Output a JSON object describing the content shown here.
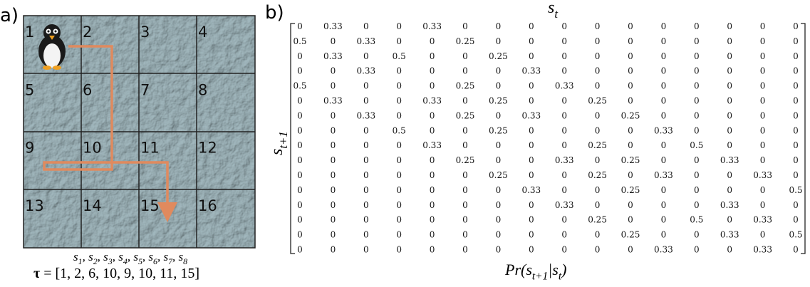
{
  "panels": {
    "a": "a)",
    "b": "b)"
  },
  "grid": {
    "cells": [
      "1",
      "2",
      "3",
      "4",
      "5",
      "6",
      "7",
      "8",
      "9",
      "10",
      "11",
      "12",
      "13",
      "14",
      "15",
      "16"
    ]
  },
  "trajectory": {
    "states": [
      {
        "text": "s"
      },
      {
        "text": "1",
        "sub": true
      },
      {
        "text": ", s"
      },
      {
        "text": "2",
        "sub": true
      },
      {
        "text": ", s"
      },
      {
        "text": "3",
        "sub": true
      },
      {
        "text": ", s"
      },
      {
        "text": "4",
        "sub": true
      },
      {
        "text": ", s"
      },
      {
        "text": "5",
        "sub": true
      },
      {
        "text": ", s"
      },
      {
        "text": "6",
        "sub": true
      },
      {
        "text": ", s"
      },
      {
        "text": "7",
        "sub": true
      },
      {
        "text": ", s"
      },
      {
        "text": "8",
        "sub": true
      }
    ],
    "tau": [
      {
        "text": "τ",
        "bold": true
      },
      {
        "text": " = [1, 2, 6, 10, 9, 10, 11, 15]"
      }
    ]
  },
  "matrix": {
    "column_label": [
      {
        "text": "s"
      },
      {
        "text": "t",
        "sub": true
      }
    ],
    "row_label": [
      {
        "text": "s"
      },
      {
        "text": "t+1",
        "sub": true
      }
    ],
    "caption": [
      {
        "text": "Pr(s"
      },
      {
        "text": "t+1",
        "sub": true
      },
      {
        "text": "|s"
      },
      {
        "text": "t",
        "sub": true
      },
      {
        "text": ")"
      }
    ],
    "rows": [
      [
        "0",
        "0.33",
        "0",
        "0",
        "0.33",
        "0",
        "0",
        "0",
        "0",
        "0",
        "0",
        "0",
        "0",
        "0",
        "0",
        "0"
      ],
      [
        "0.5",
        "0",
        "0.33",
        "0",
        "0",
        "0.25",
        "0",
        "0",
        "0",
        "0",
        "0",
        "0",
        "0",
        "0",
        "0",
        "0"
      ],
      [
        "0",
        "0.33",
        "0",
        "0.5",
        "0",
        "0",
        "0.25",
        "0",
        "0",
        "0",
        "0",
        "0",
        "0",
        "0",
        "0",
        "0"
      ],
      [
        "0",
        "0",
        "0.33",
        "0",
        "0",
        "0",
        "0",
        "0.33",
        "0",
        "0",
        "0",
        "0",
        "0",
        "0",
        "0",
        "0"
      ],
      [
        "0.5",
        "0",
        "0",
        "0",
        "0",
        "0.25",
        "0",
        "0",
        "0.33",
        "0",
        "0",
        "0",
        "0",
        "0",
        "0",
        "0"
      ],
      [
        "0",
        "0.33",
        "0",
        "0",
        "0.33",
        "0",
        "0.25",
        "0",
        "0",
        "0.25",
        "0",
        "0",
        "0",
        "0",
        "0",
        "0"
      ],
      [
        "0",
        "0",
        "0.33",
        "0",
        "0",
        "0.25",
        "0",
        "0.33",
        "0",
        "0",
        "0.25",
        "0",
        "0",
        "0",
        "0",
        "0"
      ],
      [
        "0",
        "0",
        "0",
        "0.5",
        "0",
        "0",
        "0.25",
        "0",
        "0",
        "0",
        "0",
        "0.33",
        "0",
        "0",
        "0",
        "0"
      ],
      [
        "0",
        "0",
        "0",
        "0",
        "0.33",
        "0",
        "0",
        "0",
        "0",
        "0.25",
        "0",
        "0",
        "0.5",
        "0",
        "0",
        "0"
      ],
      [
        "0",
        "0",
        "0",
        "0",
        "0",
        "0.25",
        "0",
        "0",
        "0.33",
        "0",
        "0.25",
        "0",
        "0",
        "0.33",
        "0",
        "0"
      ],
      [
        "0",
        "0",
        "0",
        "0",
        "0",
        "0",
        "0.25",
        "0",
        "0",
        "0.25",
        "0",
        "0.33",
        "0",
        "0",
        "0.33",
        "0"
      ],
      [
        "0",
        "0",
        "0",
        "0",
        "0",
        "0",
        "0",
        "0.33",
        "0",
        "0",
        "0.25",
        "0",
        "0",
        "0",
        "0",
        "0.5"
      ],
      [
        "0",
        "0",
        "0",
        "0",
        "0",
        "0",
        "0",
        "0",
        "0.33",
        "0",
        "0",
        "0",
        "0",
        "0.33",
        "0",
        "0"
      ],
      [
        "0",
        "0",
        "0",
        "0",
        "0",
        "0",
        "0",
        "0",
        "0",
        "0.25",
        "0",
        "0",
        "0.5",
        "0",
        "0.33",
        "0"
      ],
      [
        "0",
        "0",
        "0",
        "0",
        "0",
        "0",
        "0",
        "0",
        "0",
        "0",
        "0.25",
        "0",
        "0",
        "0.33",
        "0",
        "0.5"
      ],
      [
        "0",
        "0",
        "0",
        "0",
        "0",
        "0",
        "0",
        "0",
        "0",
        "0",
        "0",
        "0.33",
        "0",
        "0",
        "0.33",
        "0"
      ]
    ]
  }
}
